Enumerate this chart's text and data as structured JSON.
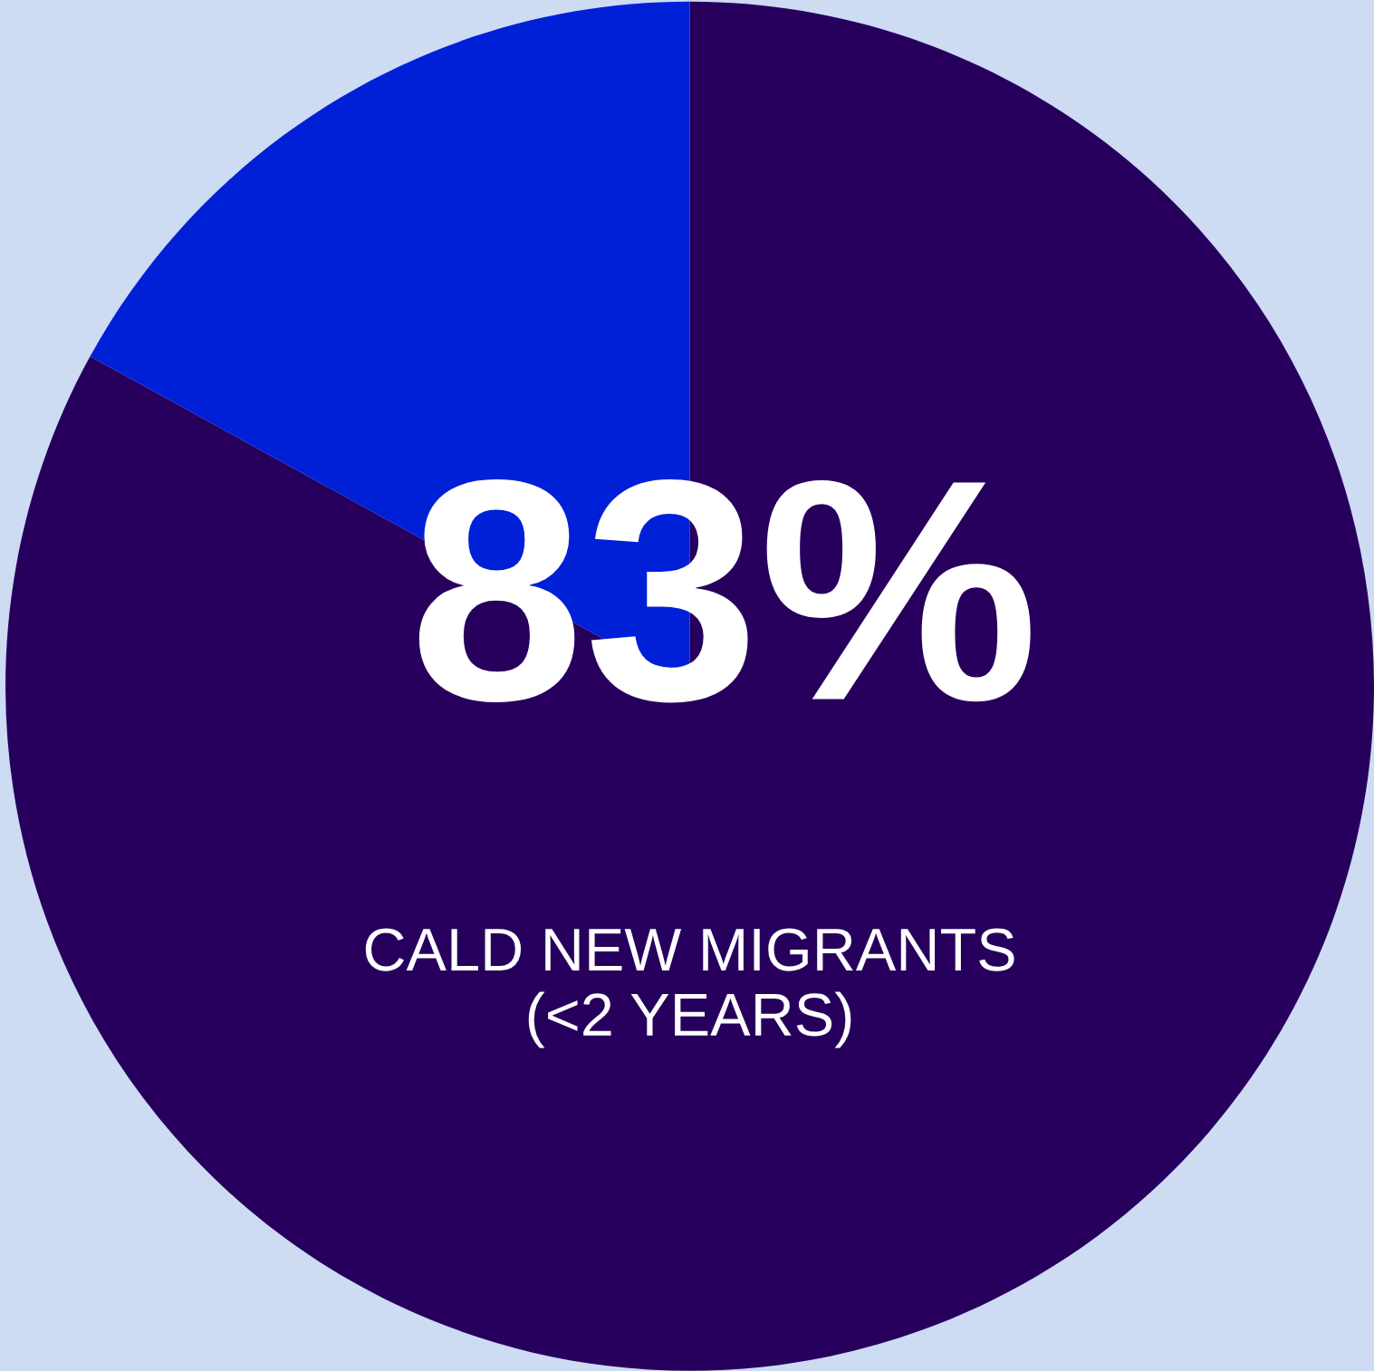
{
  "chart_data": {
    "type": "pie",
    "categories": [
      "CALD NEW MIGRANTS\n(<2 YEARS)",
      null
    ],
    "values": [
      83,
      17
    ],
    "value_labels": [
      "83%",
      null
    ],
    "colors": [
      "#27005e",
      "#0020d8"
    ],
    "legend": false
  }
}
